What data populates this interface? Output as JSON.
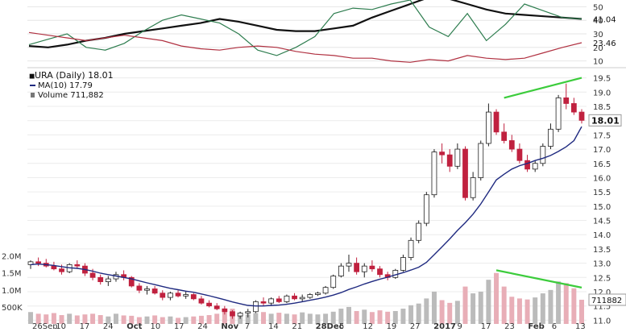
{
  "chart_data": [
    {
      "panel": "indicator",
      "type": "line",
      "y_ticks": [
        "50",
        "40",
        "30",
        "20",
        "10"
      ],
      "ylim": [
        5,
        55
      ],
      "readouts": [
        {
          "series": "black",
          "value": "41.04"
        },
        {
          "series": "red",
          "value": "23.46"
        }
      ],
      "series": [
        {
          "color": "#111111",
          "values": [
            21,
            20,
            22,
            25,
            27,
            30,
            32,
            34,
            36,
            38,
            41,
            39,
            36,
            33,
            32,
            32,
            34,
            36,
            42,
            47,
            52,
            57,
            56,
            52,
            48,
            45,
            44,
            43,
            42,
            41
          ]
        },
        {
          "color": "#2e7d4f",
          "values": [
            22,
            26,
            30,
            20,
            18,
            23,
            32,
            40,
            44,
            41,
            38,
            30,
            18,
            14,
            20,
            28,
            45,
            49,
            48,
            52,
            55,
            35,
            28,
            45,
            25,
            37,
            52,
            47,
            42,
            41
          ]
        },
        {
          "color": "#b03040",
          "values": [
            31,
            29,
            27,
            25,
            27,
            29,
            27,
            25,
            21,
            19,
            18,
            20,
            21,
            20,
            17,
            15,
            14,
            12,
            12,
            10,
            9,
            11,
            10,
            14,
            12,
            11,
            12,
            16,
            20,
            23.46
          ]
        }
      ]
    },
    {
      "panel": "price",
      "type": "candlestick",
      "legend": [
        {
          "label": "URA (Daily) 18.01"
        },
        {
          "label": "MA(10) 17.79",
          "color": "#1f2a80"
        },
        {
          "label": "Volume 711,882",
          "color": "#777777"
        }
      ],
      "y_ticks": [
        "19.5",
        "19.0",
        "18.5",
        "18.0",
        "17.5",
        "17.0",
        "16.5",
        "16.0",
        "15.5",
        "15.0",
        "14.5",
        "14.0",
        "13.5",
        "13.0",
        "12.5",
        "12.0",
        "11.5",
        "11.0"
      ],
      "ylim": [
        10.7,
        19.8
      ],
      "last_price_label": "18.01",
      "volume_label": "711882",
      "volume_ticks": [
        "2.0M",
        "1.5M",
        "1.0M",
        "500K"
      ],
      "x_labels": [
        "26Sep",
        "10",
        "17",
        "24",
        "Oct",
        "10",
        "17",
        "24",
        "Nov",
        "7",
        "14",
        "21",
        "28Dec",
        "5",
        "12",
        "19",
        "27",
        "2017",
        "9",
        "17",
        "23",
        "Feb",
        "6",
        "13"
      ],
      "colors": {
        "up": "#ffffff",
        "down": "#c0213f",
        "ma": "#1f2a80",
        "trend": "#3ccc3c",
        "vol_up": "#bbbbbb",
        "vol_down": "#e8aeb7"
      },
      "candles": [
        [
          12.95,
          13.1,
          12.8,
          13.05
        ],
        [
          13.05,
          13.2,
          12.9,
          13.0
        ],
        [
          13.0,
          13.15,
          12.85,
          12.9
        ],
        [
          12.9,
          13.05,
          12.75,
          12.8
        ],
        [
          12.8,
          12.95,
          12.6,
          12.7
        ],
        [
          12.7,
          13.0,
          12.65,
          12.95
        ],
        [
          12.95,
          13.1,
          12.8,
          12.9
        ],
        [
          12.9,
          13.0,
          12.55,
          12.65
        ],
        [
          12.65,
          12.8,
          12.4,
          12.5
        ],
        [
          12.5,
          12.6,
          12.25,
          12.35
        ],
        [
          12.35,
          12.55,
          12.2,
          12.45
        ],
        [
          12.45,
          12.7,
          12.35,
          12.6
        ],
        [
          12.6,
          12.75,
          12.4,
          12.5
        ],
        [
          12.5,
          12.55,
          12.15,
          12.2
        ],
        [
          12.2,
          12.3,
          11.95,
          12.05
        ],
        [
          12.05,
          12.2,
          11.9,
          12.1
        ],
        [
          12.1,
          12.2,
          11.9,
          11.95
        ],
        [
          11.95,
          12.05,
          11.7,
          11.8
        ],
        [
          11.8,
          12.0,
          11.7,
          11.95
        ],
        [
          11.95,
          12.05,
          11.8,
          11.85
        ],
        [
          11.85,
          12.0,
          11.75,
          11.9
        ],
        [
          11.9,
          11.95,
          11.7,
          11.75
        ],
        [
          11.75,
          11.85,
          11.55,
          11.6
        ],
        [
          11.6,
          11.7,
          11.45,
          11.5
        ],
        [
          11.5,
          11.6,
          11.35,
          11.4
        ],
        [
          11.4,
          11.5,
          11.2,
          11.3
        ],
        [
          11.3,
          11.35,
          11.05,
          11.15
        ],
        [
          11.15,
          11.3,
          11.05,
          11.25
        ],
        [
          11.25,
          11.4,
          11.1,
          11.3
        ],
        [
          11.3,
          11.7,
          11.25,
          11.65
        ],
        [
          11.65,
          11.8,
          11.5,
          11.6
        ],
        [
          11.6,
          11.8,
          11.5,
          11.75
        ],
        [
          11.75,
          11.85,
          11.6,
          11.65
        ],
        [
          11.65,
          11.9,
          11.6,
          11.85
        ],
        [
          11.85,
          11.95,
          11.7,
          11.75
        ],
        [
          11.75,
          11.9,
          11.65,
          11.8
        ],
        [
          11.8,
          11.95,
          11.75,
          11.9
        ],
        [
          11.9,
          12.0,
          11.85,
          11.95
        ],
        [
          11.95,
          12.2,
          11.9,
          12.15
        ],
        [
          12.15,
          12.6,
          12.1,
          12.55
        ],
        [
          12.55,
          13.0,
          12.5,
          12.9
        ],
        [
          12.9,
          13.3,
          12.7,
          13.0
        ],
        [
          13.0,
          13.2,
          12.6,
          12.7
        ],
        [
          12.7,
          13.0,
          12.5,
          12.9
        ],
        [
          12.9,
          13.1,
          12.7,
          12.8
        ],
        [
          12.8,
          12.9,
          12.5,
          12.6
        ],
        [
          12.6,
          12.7,
          12.4,
          12.5
        ],
        [
          12.5,
          12.8,
          12.45,
          12.75
        ],
        [
          12.75,
          13.3,
          12.7,
          13.2
        ],
        [
          13.2,
          13.9,
          13.1,
          13.8
        ],
        [
          13.8,
          14.5,
          13.7,
          14.4
        ],
        [
          14.4,
          15.5,
          14.3,
          15.4
        ],
        [
          15.4,
          17.0,
          15.3,
          16.9
        ],
        [
          16.9,
          17.2,
          16.5,
          16.8
        ],
        [
          16.8,
          17.0,
          16.2,
          16.4
        ],
        [
          16.4,
          17.2,
          16.3,
          17.0
        ],
        [
          17.0,
          17.1,
          15.2,
          15.3
        ],
        [
          15.3,
          16.2,
          15.2,
          16.0
        ],
        [
          16.0,
          17.3,
          15.9,
          17.2
        ],
        [
          17.2,
          18.6,
          17.1,
          18.3
        ],
        [
          18.3,
          18.4,
          17.5,
          17.6
        ],
        [
          17.6,
          17.9,
          17.2,
          17.3
        ],
        [
          17.3,
          17.5,
          16.9,
          17.0
        ],
        [
          17.0,
          17.2,
          16.5,
          16.6
        ],
        [
          16.6,
          16.8,
          16.2,
          16.3
        ],
        [
          16.3,
          16.6,
          16.2,
          16.5
        ],
        [
          16.5,
          17.2,
          16.4,
          17.1
        ],
        [
          17.1,
          17.9,
          17.0,
          17.7
        ],
        [
          17.7,
          18.9,
          17.6,
          18.8
        ],
        [
          18.8,
          19.3,
          18.4,
          18.6
        ],
        [
          18.6,
          18.8,
          18.2,
          18.3
        ],
        [
          18.3,
          18.4,
          17.9,
          18.01
        ]
      ],
      "ma10": [
        12.95,
        12.97,
        12.95,
        12.92,
        12.88,
        12.84,
        12.82,
        12.78,
        12.72,
        12.65,
        12.6,
        12.55,
        12.5,
        12.45,
        12.38,
        12.31,
        12.25,
        12.18,
        12.12,
        12.07,
        12.02,
        11.98,
        11.92,
        11.86,
        11.79,
        11.72,
        11.64,
        11.58,
        11.52,
        11.5,
        11.5,
        11.52,
        11.53,
        11.56,
        11.6,
        11.65,
        11.7,
        11.75,
        11.81,
        11.88,
        11.97,
        12.08,
        12.17,
        12.27,
        12.36,
        12.44,
        12.51,
        12.59,
        12.67,
        12.76,
        12.86,
        13.03,
        13.3,
        13.57,
        13.85,
        14.15,
        14.42,
        14.72,
        15.08,
        15.5,
        15.92,
        16.12,
        16.3,
        16.42,
        16.5,
        16.6,
        16.68,
        16.78,
        16.92,
        17.08,
        17.3,
        17.79
      ],
      "volume": [
        0.35,
        0.3,
        0.28,
        0.32,
        0.26,
        0.3,
        0.25,
        0.28,
        0.3,
        0.26,
        0.22,
        0.3,
        0.25,
        0.24,
        0.2,
        0.22,
        0.25,
        0.2,
        0.22,
        0.18,
        0.2,
        0.22,
        0.24,
        0.26,
        0.3,
        0.38,
        0.45,
        0.3,
        0.28,
        0.32,
        0.35,
        0.3,
        0.33,
        0.3,
        0.28,
        0.34,
        0.3,
        0.28,
        0.3,
        0.36,
        0.45,
        0.5,
        0.38,
        0.42,
        0.35,
        0.4,
        0.36,
        0.38,
        0.45,
        0.55,
        0.6,
        0.75,
        0.95,
        0.7,
        0.62,
        0.68,
        1.1,
        0.9,
        0.95,
        1.3,
        1.5,
        1.1,
        0.8,
        0.75,
        0.72,
        0.78,
        0.9,
        1.0,
        1.25,
        1.2,
        1.05,
        0.711882
      ],
      "trendlines": [
        {
          "panel": "price",
          "from": [
            61,
            18.8
          ],
          "to": [
            71,
            19.5
          ]
        },
        {
          "panel": "volume",
          "from": [
            60,
            1.58
          ],
          "to": [
            71,
            1.07
          ]
        }
      ]
    }
  ]
}
